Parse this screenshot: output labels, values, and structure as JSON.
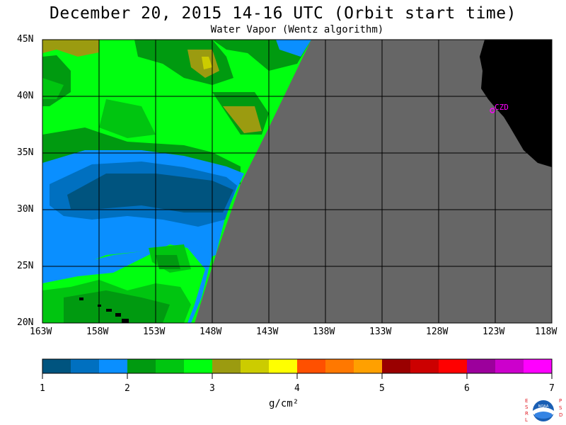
{
  "header": {
    "title": "December 20, 2015  14-16 UTC  (Orbit start time)",
    "subtitle": "Water Vapor (Wentz algorithm)"
  },
  "map": {
    "lat_labels": [
      "45N",
      "40N",
      "35N",
      "30N",
      "25N",
      "20N"
    ],
    "lon_labels": [
      "163W",
      "158W",
      "153W",
      "148W",
      "143W",
      "138W",
      "133W",
      "128W",
      "123W",
      "118W"
    ],
    "station_label": "CZD",
    "colors": {
      "no_data": "#666666",
      "land": "#000000",
      "grid": "#000000",
      "station": "#ff00ff"
    }
  },
  "colorbar": {
    "colors": [
      "#00547f",
      "#0070c0",
      "#0a8fff",
      "#009a10",
      "#00c510",
      "#00ff10",
      "#9b9b10",
      "#cccc00",
      "#ffff00",
      "#ff5000",
      "#ff7800",
      "#ffa000",
      "#9a0000",
      "#cc0000",
      "#ff0000",
      "#9c009c",
      "#cc00cc",
      "#ff00ff"
    ],
    "tick_labels": [
      "1",
      "2",
      "3",
      "4",
      "5",
      "6",
      "7"
    ],
    "unit": "g/cm²"
  },
  "logo": {
    "left_letters": [
      "E",
      "S",
      "R",
      "L"
    ],
    "right_letters": [
      "P",
      "S",
      "D"
    ],
    "text": "NOAA"
  }
}
